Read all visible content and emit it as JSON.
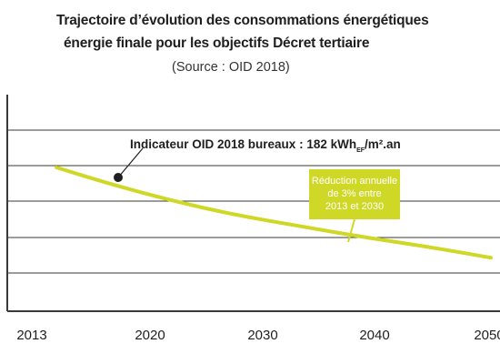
{
  "chart_data": {
    "type": "line",
    "title": "Trajectoire d’évolution des consommations énergétiques",
    "subtitle": "énergie finale pour les objectifs Décret tertiaire",
    "source": "(Source  : OID 2018)",
    "x_ticks": [
      "2013",
      "2020",
      "2030",
      "2040",
      "2050"
    ],
    "xlim": [
      2013,
      2050
    ],
    "grid": true,
    "series": [
      {
        "color": "#cfd826",
        "x": [
          2016,
          2020,
          2025,
          2030,
          2035,
          2040,
          2045,
          2050
        ],
        "relative_y": [
          1.0,
          0.9,
          0.79,
          0.7,
          0.63,
          0.56,
          0.5,
          0.43
        ]
      }
    ],
    "annotations": {
      "indicator": {
        "text_main": "Indicateur OID 2018 bureaux : 182 kWh",
        "text_sub": "EF",
        "text_tail": "/m².an"
      },
      "reduction": {
        "lines": [
          "Réduction annuelle",
          "de 3% entre",
          "2013 et 2030"
        ],
        "color": "#cfd826"
      }
    }
  }
}
